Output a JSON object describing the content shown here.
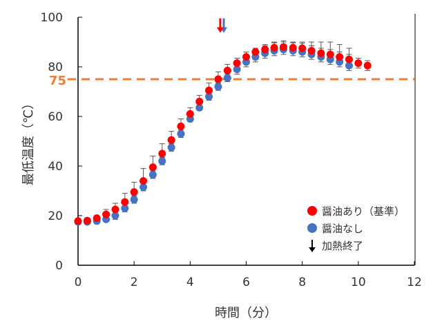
{
  "chart_data": {
    "type": "scatter",
    "title": "",
    "xlabel": "時間（分）",
    "ylabel": "最低温度（℃）",
    "xlim": [
      0,
      12
    ],
    "ylim": [
      0,
      100
    ],
    "xticks": [
      0,
      2,
      4,
      6,
      8,
      10,
      12
    ],
    "yticks": [
      0,
      20,
      40,
      60,
      80,
      100
    ],
    "grid": false,
    "legend_position": "bottom-right",
    "reference_line": {
      "value": 75,
      "label": "75",
      "color": "#ED7D31"
    },
    "series": [
      {
        "name": "醤油あり（基準）",
        "color": "#FF0000",
        "x": [
          0,
          0.33,
          0.67,
          1,
          1.33,
          1.67,
          2,
          2.33,
          2.67,
          3,
          3.33,
          3.67,
          4,
          4.33,
          4.67,
          5,
          5.33,
          5.67,
          6,
          6.33,
          6.67,
          7,
          7.33,
          7.67,
          8,
          8.33,
          8.67,
          9,
          9.33,
          9.67,
          10,
          10.33
        ],
        "y": [
          17.8,
          18,
          19,
          20.5,
          22.5,
          25.5,
          29.5,
          34,
          39.5,
          45,
          50.5,
          56,
          61,
          66,
          70.5,
          75,
          78.5,
          81.5,
          84,
          86,
          87,
          87.7,
          88,
          87.7,
          87.5,
          86.5,
          85.5,
          85,
          84,
          83,
          81.5,
          80.5
        ],
        "err": [
          0,
          0.5,
          1,
          2,
          2.5,
          3.5,
          4,
          5,
          4.5,
          4,
          3.5,
          3,
          2.5,
          2.5,
          3,
          3,
          2.5,
          2,
          2,
          1.5,
          1.5,
          2,
          2,
          2,
          2,
          2,
          2,
          2,
          2,
          2,
          2,
          2
        ],
        "heating_end": 5.0
      },
      {
        "name": "醤油なし",
        "color": "#4472C4",
        "x": [
          0,
          0.33,
          0.67,
          1,
          1.33,
          1.67,
          2,
          2.33,
          2.67,
          3,
          3.33,
          3.67,
          4,
          4.33,
          4.67,
          5,
          5.33,
          5.67,
          6,
          6.33,
          6.67,
          7,
          7.33,
          7.67,
          8,
          8.33,
          8.67,
          9,
          9.33,
          9.67
        ],
        "y": [
          17.5,
          17.5,
          17.8,
          18.5,
          20,
          23,
          26.5,
          31.5,
          36.5,
          42,
          47.5,
          53,
          59,
          63.5,
          68,
          72,
          75.5,
          79,
          82,
          84,
          85.5,
          86.5,
          87,
          86.5,
          86,
          85,
          84,
          83,
          82,
          80.5
        ],
        "err": [
          0,
          1,
          1,
          1,
          1.5,
          1.5,
          1.5,
          1.5,
          1.5,
          1.5,
          1.5,
          1.5,
          1,
          1,
          1.5,
          1.5,
          1.5,
          3,
          3,
          3,
          3.5,
          3.5,
          3.5,
          3.5,
          4,
          5,
          6,
          7,
          7,
          7
        ],
        "heating_end": 5.2
      }
    ],
    "legend": [
      {
        "label": "醤油あり（基準）",
        "symbol": "red-dot"
      },
      {
        "label": "醤油なし",
        "symbol": "blue-dot"
      },
      {
        "label": "加熱終了",
        "symbol": "down-arrow"
      }
    ]
  }
}
